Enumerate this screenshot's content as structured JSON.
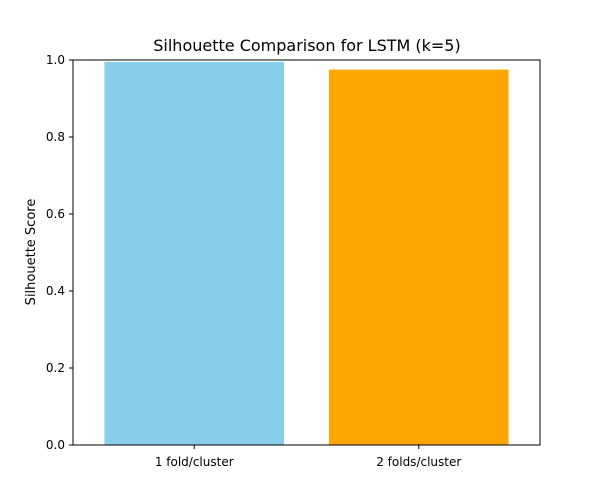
{
  "chart_data": {
    "type": "bar",
    "title": "Silhouette Comparison for LSTM (k=5)",
    "xlabel": "",
    "ylabel": "Silhouette Score",
    "categories": [
      "1 fold/cluster",
      "2 folds/cluster"
    ],
    "values": [
      0.995,
      0.975
    ],
    "colors": [
      "#87CEEB",
      "#FFA500"
    ],
    "ylim": [
      0,
      1.0
    ],
    "yticks": [
      0.0,
      0.2,
      0.4,
      0.6,
      0.8,
      1.0
    ],
    "ytick_labels": [
      "0.0",
      "0.2",
      "0.4",
      "0.6",
      "0.8",
      "1.0"
    ],
    "grid": false,
    "legend": "none"
  }
}
